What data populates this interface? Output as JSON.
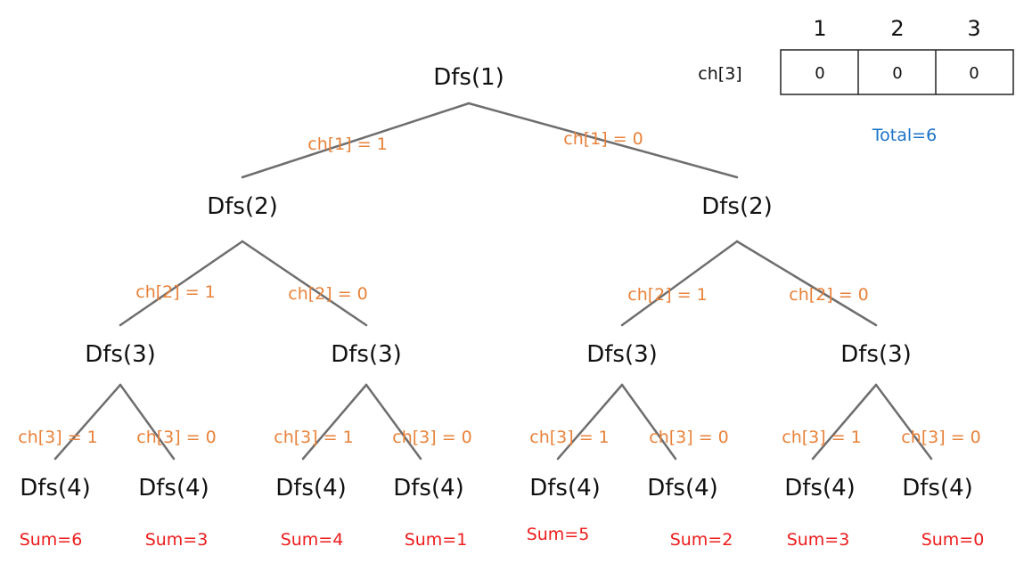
{
  "colors": {
    "edge": "#6e6e6e",
    "edge_label": "#e8823a",
    "sum": "#ee1c1c",
    "total": "#1a73c8",
    "node": "#111111"
  },
  "array": {
    "label": "ch[3]",
    "indices": [
      "1",
      "2",
      "3"
    ],
    "values": [
      "0",
      "0",
      "0"
    ]
  },
  "total": "Total=6",
  "tree": {
    "root": "Dfs(1)",
    "level1": [
      "Dfs(2)",
      "Dfs(2)"
    ],
    "level2": [
      "Dfs(3)",
      "Dfs(3)",
      "Dfs(3)",
      "Dfs(3)"
    ],
    "leaves": [
      "Dfs(4)",
      "Dfs(4)",
      "Dfs(4)",
      "Dfs(4)",
      "Dfs(4)",
      "Dfs(4)",
      "Dfs(4)",
      "Dfs(4)"
    ]
  },
  "edge_labels": {
    "level1": [
      "ch[1] = 1",
      "ch[1] = 0"
    ],
    "level2": [
      "ch[2] = 1",
      "ch[2] = 0",
      "ch[2] = 1",
      "ch[2] = 0"
    ],
    "level3": [
      "ch[3] = 1",
      "ch[3] = 0",
      "ch[3] = 1",
      "ch[3] = 0",
      "ch[3] = 1",
      "ch[3] = 0",
      "ch[3] = 1",
      "ch[3] = 0"
    ]
  },
  "sums": [
    "Sum=6",
    "Sum=3",
    "Sum=4",
    "Sum=1",
    "Sum=5",
    "Sum=2",
    "Sum=3",
    "Sum=0"
  ]
}
